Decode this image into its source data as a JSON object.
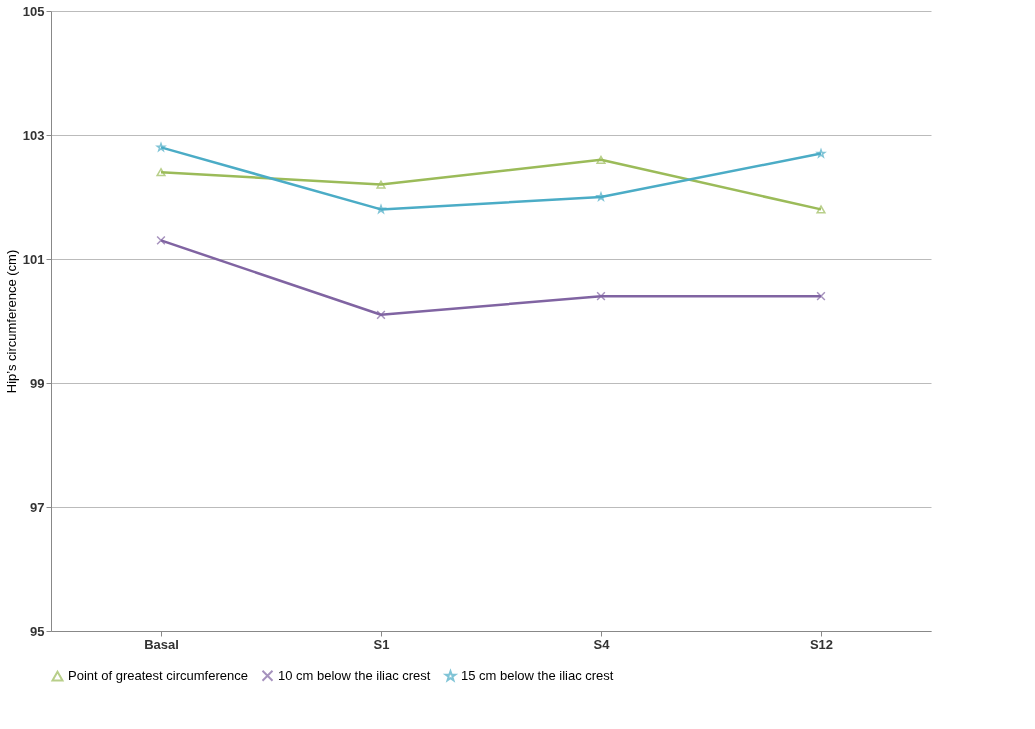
{
  "chart_data": {
    "type": "line",
    "ylabel": "Hip’s circumference (cm)",
    "categories": [
      "Basal",
      "S1",
      "S4",
      "S12"
    ],
    "series": [
      {
        "name": "Point of greatest circumference",
        "color": "#9bbb59",
        "marker": "triangle",
        "values": [
          102.4,
          102.2,
          102.6,
          101.8
        ]
      },
      {
        "name": "10 cm below the iliac crest",
        "color": "#8064a2",
        "marker": "cross",
        "values": [
          101.3,
          100.1,
          100.4,
          100.4
        ]
      },
      {
        "name": "15 cm below the iliac crest",
        "color": "#4bacc6",
        "marker": "star",
        "values": [
          102.8,
          101.8,
          102.0,
          102.7
        ]
      }
    ],
    "ylim": [
      95,
      105
    ],
    "yticks": [
      95,
      97,
      99,
      101,
      103,
      105
    ],
    "grid": "y",
    "legend": "bottom"
  }
}
